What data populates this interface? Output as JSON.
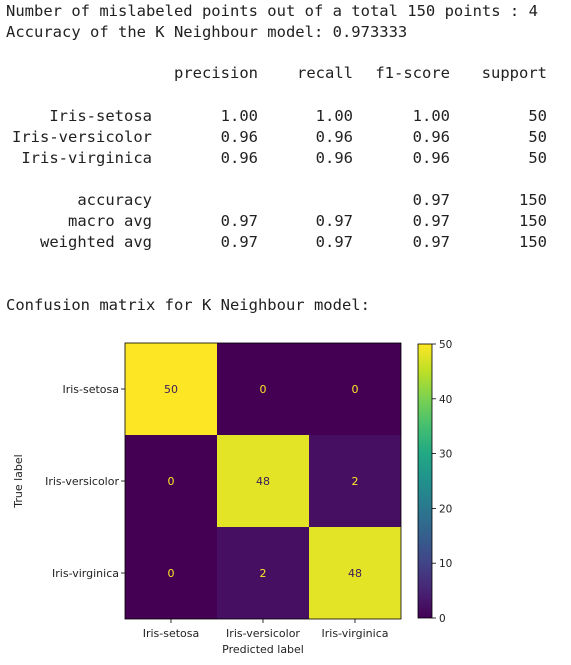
{
  "summary": {
    "mislabeled_line": "Number of mislabeled points out of a total 150 points : 4",
    "accuracy_line": "Accuracy of the K Neighbour model: 0.973333"
  },
  "report": {
    "headers": [
      "precision",
      "recall",
      "f1-score",
      "support"
    ],
    "rows": [
      {
        "label": "Iris-setosa",
        "precision": "1.00",
        "recall": "1.00",
        "f1": "1.00",
        "support": "50"
      },
      {
        "label": "Iris-versicolor",
        "precision": "0.96",
        "recall": "0.96",
        "f1": "0.96",
        "support": "50"
      },
      {
        "label": "Iris-virginica",
        "precision": "0.96",
        "recall": "0.96",
        "f1": "0.96",
        "support": "50"
      }
    ],
    "totals": [
      {
        "label": "accuracy",
        "precision": "",
        "recall": "",
        "f1": "0.97",
        "support": "150"
      },
      {
        "label": "macro avg",
        "precision": "0.97",
        "recall": "0.97",
        "f1": "0.97",
        "support": "150"
      },
      {
        "label": "weighted avg",
        "precision": "0.97",
        "recall": "0.97",
        "f1": "0.97",
        "support": "150"
      }
    ]
  },
  "cm_title": "Confusion matrix for K Neighbour model:",
  "chart_data": {
    "type": "heatmap",
    "title": "",
    "xlabel": "Predicted label",
    "ylabel": "True label",
    "x_categories": [
      "Iris-setosa",
      "Iris-versicolor",
      "Iris-virginica"
    ],
    "y_categories": [
      "Iris-setosa",
      "Iris-versicolor",
      "Iris-virginica"
    ],
    "values": [
      [
        50,
        0,
        0
      ],
      [
        0,
        48,
        2
      ],
      [
        0,
        2,
        48
      ]
    ],
    "colormap": "viridis",
    "colorbar": {
      "range": [
        0,
        50
      ],
      "ticks": [
        0,
        10,
        20,
        30,
        40,
        50
      ]
    }
  }
}
